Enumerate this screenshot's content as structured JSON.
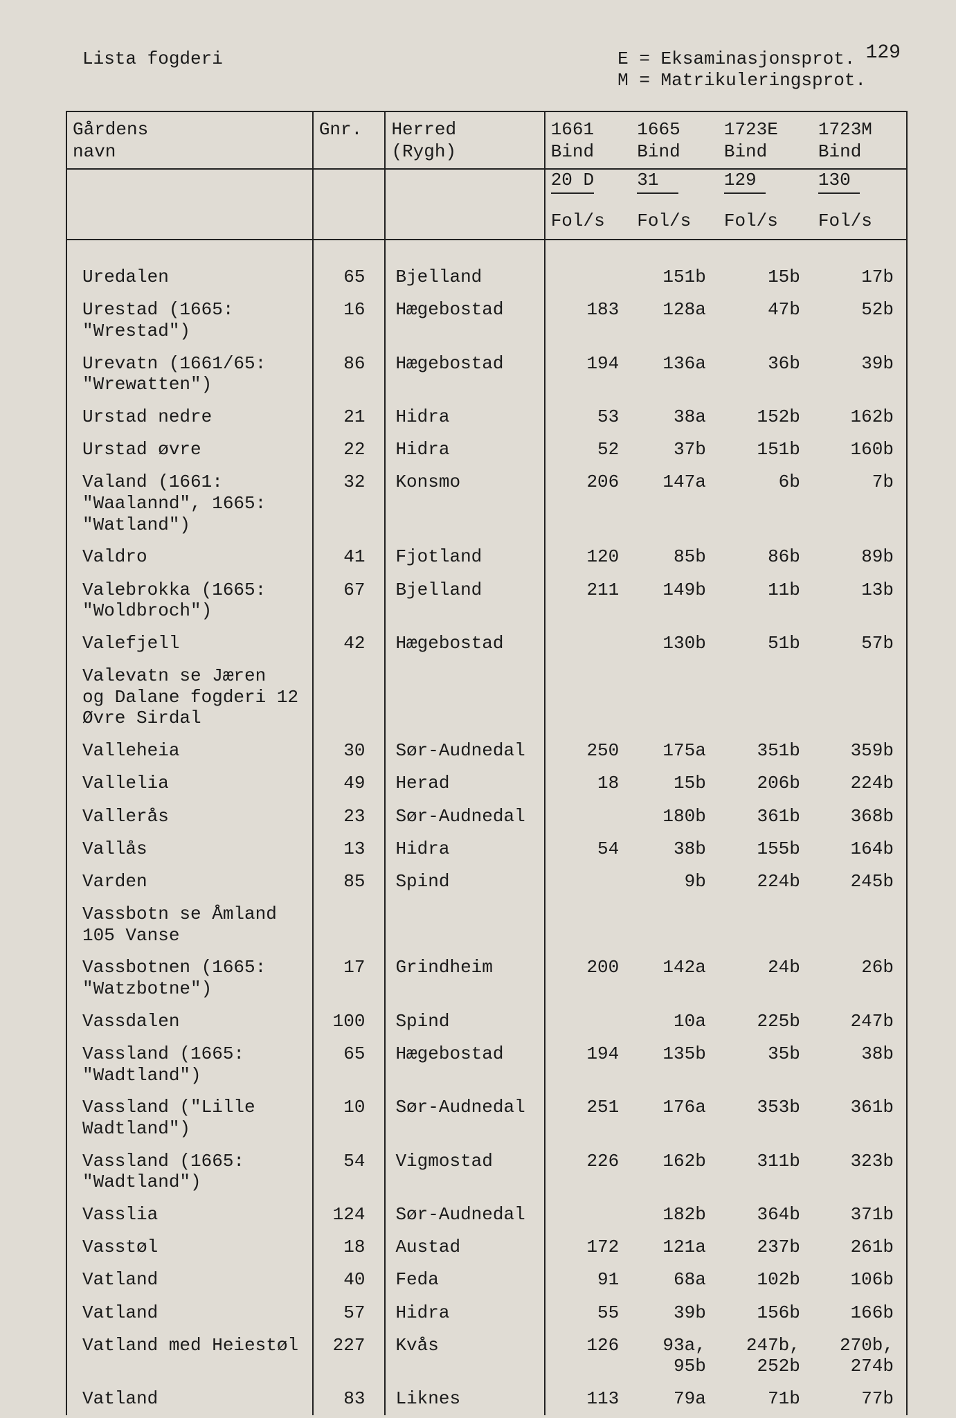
{
  "page_number": "129",
  "header_left": "Lista fogderi",
  "legend_lines": [
    "E = Eksaminasjonsprot.",
    "M = Matrikuleringsprot."
  ],
  "columns": {
    "name_l1": "Gårdens",
    "name_l2": "navn",
    "gnr": "Gnr.",
    "herred_l1": "Herred",
    "herred_l2": "(Rygh)",
    "c1_l1": "1661",
    "c1_l2": "Bind",
    "c1_l3": "20 D",
    "c2_l1": "1665",
    "c2_l2": "Bind",
    "c2_l3": "31",
    "c3_l1": "1723E",
    "c3_l2": "Bind",
    "c3_l3": "129",
    "c4_l1": "1723M",
    "c4_l2": "Bind",
    "c4_l3": "130",
    "fols": "Fol/s"
  },
  "rows": [
    {
      "name": "Uredalen",
      "gnr": "65",
      "herred": "Bjelland",
      "v1": "",
      "v2": "151b",
      "v3": "15b",
      "v4": "17b"
    },
    {
      "name": "Urestad (1665:\n\"Wrestad\")",
      "gnr": "16",
      "herred": "Hægebostad",
      "v1": "183",
      "v2": "128a",
      "v3": "47b",
      "v4": "52b"
    },
    {
      "name": "Urevatn (1661/65:\n\"Wrewatten\")",
      "gnr": "86",
      "herred": "Hægebostad",
      "v1": "194",
      "v2": "136a",
      "v3": "36b",
      "v4": "39b"
    },
    {
      "name": "Urstad nedre",
      "gnr": "21",
      "herred": "Hidra",
      "v1": "53",
      "v2": "38a",
      "v3": "152b",
      "v4": "162b"
    },
    {
      "name": "Urstad øvre",
      "gnr": "22",
      "herred": "Hidra",
      "v1": "52",
      "v2": "37b",
      "v3": "151b",
      "v4": "160b"
    },
    {
      "name": "Valand (1661:\n\"Waalannd\", 1665:\n\"Watland\")",
      "gnr": "32",
      "herred": "Konsmo",
      "v1": "206",
      "v2": "147a",
      "v3": "6b",
      "v4": "7b"
    },
    {
      "name": "Valdro",
      "gnr": "41",
      "herred": "Fjotland",
      "v1": "120",
      "v2": "85b",
      "v3": "86b",
      "v4": "89b"
    },
    {
      "name": "Valebrokka (1665:\n\"Woldbroch\")",
      "gnr": "67",
      "herred": "Bjelland",
      "v1": "211",
      "v2": "149b",
      "v3": "11b",
      "v4": "13b"
    },
    {
      "name": "Valefjell",
      "gnr": "42",
      "herred": "Hægebostad",
      "v1": "",
      "v2": "130b",
      "v3": "51b",
      "v4": "57b"
    },
    {
      "name": "Valevatn se Jæren\nog Dalane fogderi 12\nØvre Sirdal",
      "gnr": "",
      "herred": "",
      "v1": "",
      "v2": "",
      "v3": "",
      "v4": ""
    },
    {
      "name": "Valleheia",
      "gnr": "30",
      "herred": "Sør-Audnedal",
      "v1": "250",
      "v2": "175a",
      "v3": "351b",
      "v4": "359b"
    },
    {
      "name": "Vallelia",
      "gnr": "49",
      "herred": "Herad",
      "v1": "18",
      "v2": "15b",
      "v3": "206b",
      "v4": "224b"
    },
    {
      "name": "Vallerås",
      "gnr": "23",
      "herred": "Sør-Audnedal",
      "v1": "",
      "v2": "180b",
      "v3": "361b",
      "v4": "368b"
    },
    {
      "name": "Vallås",
      "gnr": "13",
      "herred": "Hidra",
      "v1": "54",
      "v2": "38b",
      "v3": "155b",
      "v4": "164b"
    },
    {
      "name": "Varden",
      "gnr": "85",
      "herred": "Spind",
      "v1": "",
      "v2": "9b",
      "v3": "224b",
      "v4": "245b"
    },
    {
      "name": "Vassbotn se Åmland\n105 Vanse",
      "gnr": "",
      "herred": "",
      "v1": "",
      "v2": "",
      "v3": "",
      "v4": ""
    },
    {
      "name": "Vassbotnen (1665:\n\"Watzbotne\")",
      "gnr": "17",
      "herred": "Grindheim",
      "v1": "200",
      "v2": "142a",
      "v3": "24b",
      "v4": "26b"
    },
    {
      "name": "Vassdalen",
      "gnr": "100",
      "herred": "Spind",
      "v1": "",
      "v2": "10a",
      "v3": "225b",
      "v4": "247b"
    },
    {
      "name": "Vassland (1665:\n\"Wadtland\")",
      "gnr": "65",
      "herred": "Hægebostad",
      "v1": "194",
      "v2": "135b",
      "v3": "35b",
      "v4": "38b"
    },
    {
      "name": "Vassland (\"Lille\nWadtland\")",
      "gnr": "10",
      "herred": "Sør-Audnedal",
      "v1": "251",
      "v2": "176a",
      "v3": "353b",
      "v4": "361b"
    },
    {
      "name": "Vassland (1665:\n\"Wadtland\")",
      "gnr": "54",
      "herred": "Vigmostad",
      "v1": "226",
      "v2": "162b",
      "v3": "311b",
      "v4": "323b"
    },
    {
      "name": "Vasslia",
      "gnr": "124",
      "herred": "Sør-Audnedal",
      "v1": "",
      "v2": "182b",
      "v3": "364b",
      "v4": "371b"
    },
    {
      "name": "Vasstøl",
      "gnr": "18",
      "herred": "Austad",
      "v1": "172",
      "v2": "121a",
      "v3": "237b",
      "v4": "261b"
    },
    {
      "name": "Vatland",
      "gnr": "40",
      "herred": "Feda",
      "v1": "91",
      "v2": "68a",
      "v3": "102b",
      "v4": "106b"
    },
    {
      "name": "Vatland",
      "gnr": "57",
      "herred": "Hidra",
      "v1": "55",
      "v2": "39b",
      "v3": "156b",
      "v4": "166b"
    },
    {
      "name": "Vatland med Heiestøl",
      "gnr": "227",
      "herred": "Kvås",
      "v1": "126",
      "v2": "93a,\n95b",
      "v3": "247b,\n252b",
      "v4": "270b,\n274b"
    },
    {
      "name": "Vatland",
      "gnr": "83",
      "herred": "Liknes",
      "v1": "113",
      "v2": "79a",
      "v3": "71b",
      "v4": "77b"
    }
  ],
  "style": {
    "background_color": "#e0dcd4",
    "text_color": "#1a1a1a",
    "border_color": "#222222",
    "font_family": "Courier New",
    "font_size_pt": 20
  }
}
